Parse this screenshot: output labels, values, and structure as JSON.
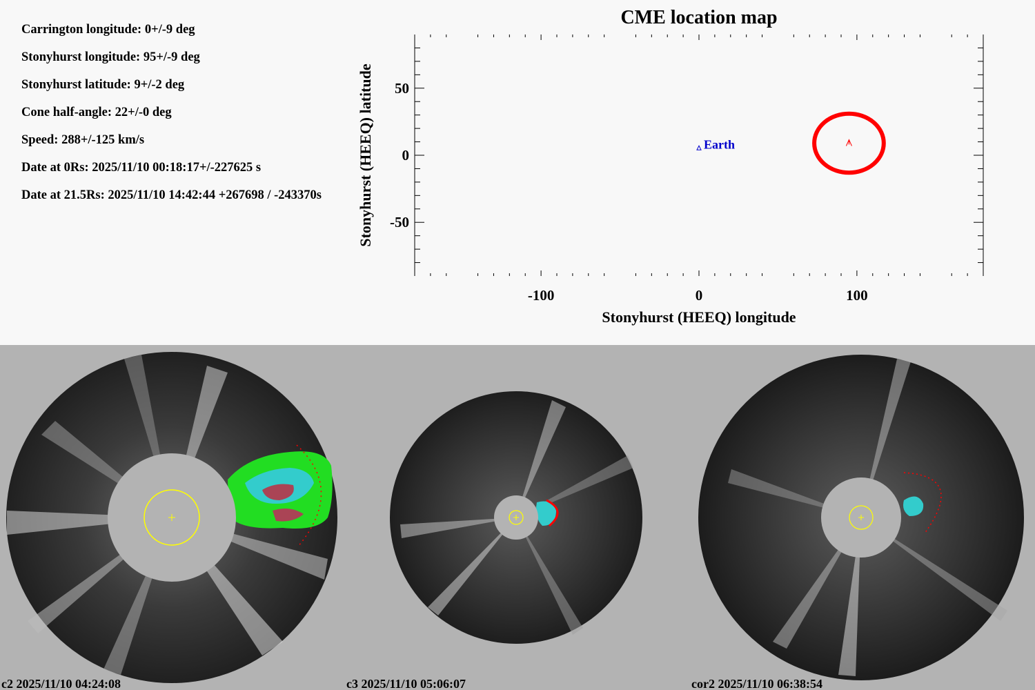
{
  "parameters": [
    "Carrington longitude: 0+/-9 deg",
    "Stonyhurst longitude: 95+/-9 deg",
    "Stonyhurst latitude: 9+/-2 deg",
    "Cone half-angle: 22+/-0 deg",
    "Speed: 288+/-125 km/s",
    "Date at 0Rs: 2025/11/10 00:18:17+/-227625 s",
    "Date at 21.5Rs: 2025/11/10 14:42:44 +267698 / -243370s"
  ],
  "chart_data": {
    "type": "scatter",
    "title": "CME location map",
    "xlabel": "Stonyhurst (HEEQ) longitude",
    "ylabel": "Stonyhurst (HEEQ) latitude",
    "xlim": [
      -180,
      180
    ],
    "ylim": [
      -90,
      90
    ],
    "xticks": [
      -100,
      0,
      100
    ],
    "yticks": [
      50,
      0,
      -50
    ],
    "points": [
      {
        "label": "Earth",
        "x": 0,
        "y": 5,
        "marker": "triangle",
        "color": "#0000cc"
      },
      {
        "label": "",
        "x": 95,
        "y": 9,
        "marker": "arrow",
        "color": "#ff0000"
      }
    ],
    "ellipse": {
      "cx": 95,
      "cy": 9,
      "half_width_deg": 22,
      "half_height_deg": 22,
      "color": "#ff0000"
    }
  },
  "panels": [
    {
      "label": "c2 2025/11/10 04:24:08"
    },
    {
      "label": "c3 2025/11/10 05:06:07"
    },
    {
      "label": "cor2 2025/11/10 06:38:54"
    }
  ],
  "colors": {
    "cme_fit": "#ff0000",
    "sun_outline": "#ffff00",
    "occulter": "#b3b3b3"
  }
}
